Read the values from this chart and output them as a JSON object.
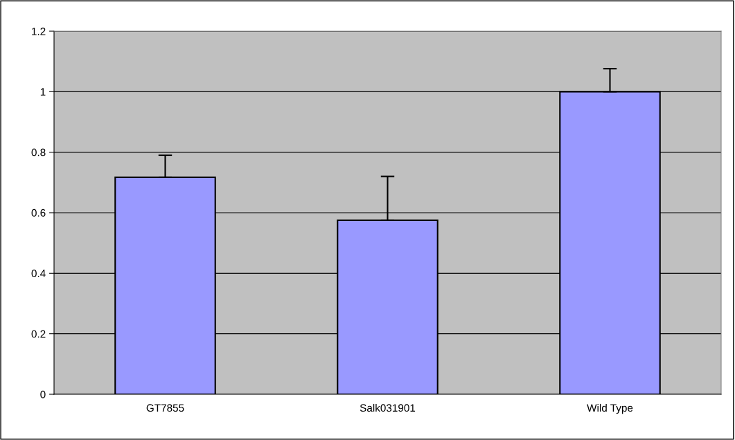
{
  "chart_data": {
    "type": "bar",
    "categories": [
      "GT7855",
      "Salk031901",
      "Wild Type"
    ],
    "values": [
      0.717,
      0.575,
      1.0
    ],
    "errors": [
      [
        0.717,
        0.79
      ],
      [
        0.575,
        0.72
      ],
      [
        1.0,
        1.076
      ]
    ],
    "color": "#9999ff",
    "ylim": [
      0,
      1.2
    ],
    "yticks": [
      0,
      0.2,
      0.4,
      0.6,
      0.8,
      1,
      1.2
    ],
    "grid": "y",
    "legend": false
  }
}
